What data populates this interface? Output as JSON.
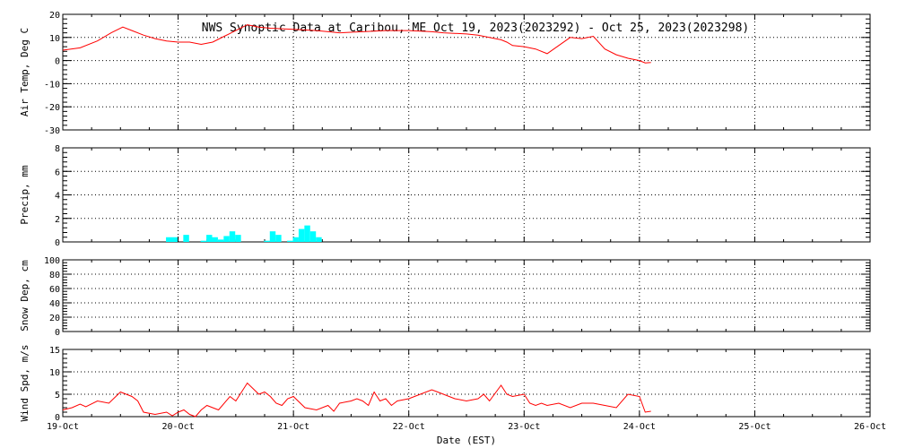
{
  "chart_data": {
    "type": "line",
    "title": "NWS Synoptic Data at Caribou, ME   Oct 19, 2023(2023292) - Oct 25, 2023(2023298)",
    "xlabel": "Date (EST)",
    "x_ticks": [
      "19-Oct",
      "20-Oct",
      "21-Oct",
      "22-Oct",
      "23-Oct",
      "24-Oct",
      "25-Oct",
      "26-Oct"
    ],
    "xlim": [
      0,
      7
    ],
    "grid": true,
    "colors": {
      "temp": "#ff0000",
      "precip": "#00ffff",
      "wind": "#ff0000"
    },
    "panels": [
      {
        "name": "air-temp",
        "type": "line",
        "ylabel": "Air Temp, Deg C",
        "ylim": [
          -30,
          20
        ],
        "yticks": [
          20,
          10,
          0,
          -10,
          -20,
          -30
        ],
        "series": [
          {
            "x": [
              0,
              0.15,
              0.3,
              0.42,
              0.52,
              0.6,
              0.7,
              0.8,
              0.9,
              1.0,
              1.1,
              1.2,
              1.3,
              1.4,
              1.5,
              1.6,
              1.7,
              1.8,
              2.0,
              2.2,
              2.4,
              2.6,
              2.8,
              3.0,
              3.2,
              3.3,
              3.5,
              3.6,
              3.8,
              3.85,
              3.9,
              4.0,
              4.1,
              4.2,
              4.3,
              4.4,
              4.5,
              4.6,
              4.7,
              4.8,
              4.9,
              5.0,
              5.05,
              5.1
            ],
            "values": [
              4.5,
              5.5,
              8.5,
              12,
              14.5,
              13,
              11,
              9.5,
              8.5,
              8,
              8,
              7,
              8,
              10.5,
              13,
              15.5,
              14.5,
              14,
              13.5,
              13,
              12,
              12.5,
              13,
              13,
              12.5,
              12,
              11.5,
              11,
              9,
              8,
              6.5,
              6,
              5,
              3,
              6.5,
              10,
              9.5,
              10.5,
              5,
              2.5,
              1,
              0,
              -1,
              -0.8
            ]
          }
        ]
      },
      {
        "name": "precip",
        "type": "bar",
        "ylabel": "Precip, mm",
        "ylim": [
          0,
          8
        ],
        "yticks": [
          8,
          6,
          4,
          2,
          0
        ],
        "bars": [
          {
            "x": 0.92,
            "v": 0.4
          },
          {
            "x": 0.97,
            "v": 0.4
          },
          {
            "x": 1.07,
            "v": 0.6
          },
          {
            "x": 1.22,
            "v": 0.1
          },
          {
            "x": 1.27,
            "v": 0.6
          },
          {
            "x": 1.32,
            "v": 0.4
          },
          {
            "x": 1.37,
            "v": 0.2
          },
          {
            "x": 1.42,
            "v": 0.5
          },
          {
            "x": 1.47,
            "v": 0.9
          },
          {
            "x": 1.52,
            "v": 0.6
          },
          {
            "x": 1.77,
            "v": 0.1
          },
          {
            "x": 1.82,
            "v": 0.9
          },
          {
            "x": 1.87,
            "v": 0.6
          },
          {
            "x": 1.97,
            "v": 0.1
          },
          {
            "x": 2.02,
            "v": 0.4
          },
          {
            "x": 2.07,
            "v": 1.1
          },
          {
            "x": 2.12,
            "v": 1.4
          },
          {
            "x": 2.17,
            "v": 0.9
          },
          {
            "x": 2.22,
            "v": 0.4
          }
        ]
      },
      {
        "name": "snow-depth",
        "type": "line",
        "ylabel": "Snow Dep, cm",
        "ylim": [
          0,
          100
        ],
        "yticks": [
          100,
          80,
          60,
          40,
          20,
          0
        ],
        "series": []
      },
      {
        "name": "wind-speed",
        "type": "line",
        "ylabel": "Wind Spd, m/s",
        "ylim": [
          0,
          15
        ],
        "yticks": [
          15,
          10,
          5,
          0
        ],
        "series": [
          {
            "x": [
              0,
              0.08,
              0.15,
              0.2,
              0.3,
              0.4,
              0.5,
              0.6,
              0.65,
              0.7,
              0.8,
              0.9,
              0.95,
              1.0,
              1.05,
              1.1,
              1.15,
              1.2,
              1.25,
              1.3,
              1.35,
              1.45,
              1.5,
              1.6,
              1.7,
              1.75,
              1.8,
              1.85,
              1.9,
              1.95,
              2.0,
              2.1,
              2.2,
              2.3,
              2.35,
              2.4,
              2.5,
              2.55,
              2.6,
              2.65,
              2.7,
              2.75,
              2.8,
              2.85,
              2.9,
              3.0,
              3.05,
              3.1,
              3.2,
              3.25,
              3.3,
              3.4,
              3.5,
              3.6,
              3.65,
              3.7,
              3.8,
              3.85,
              3.9,
              4.0,
              4.05,
              4.1,
              4.15,
              4.2,
              4.3,
              4.4,
              4.5,
              4.6,
              4.7,
              4.8,
              4.9,
              5.0,
              5.05,
              5.1
            ],
            "values": [
              1.5,
              2.0,
              2.8,
              2.2,
              3.5,
              3.0,
              5.5,
              4.5,
              3.5,
              1.0,
              0.5,
              1.0,
              0.2,
              1.0,
              1.5,
              0.5,
              0,
              1.5,
              2.5,
              2.0,
              1.5,
              4.5,
              3.5,
              7.5,
              5.0,
              5.5,
              4.5,
              3.0,
              2.5,
              4.0,
              4.5,
              2.0,
              1.5,
              2.5,
              1.2,
              3.0,
              3.5,
              4.0,
              3.5,
              2.5,
              5.5,
              3.5,
              4.0,
              2.5,
              3.5,
              4.0,
              4.5,
              5.0,
              6.0,
              5.5,
              5.0,
              4.0,
              3.5,
              4.0,
              5.0,
              3.5,
              7.0,
              5.0,
              4.5,
              5.0,
              3.0,
              2.5,
              3.0,
              2.5,
              3.0,
              2.0,
              3.0,
              3.0,
              2.5,
              2.0,
              5.0,
              4.5,
              1.0,
              1.2
            ]
          }
        ]
      }
    ]
  }
}
